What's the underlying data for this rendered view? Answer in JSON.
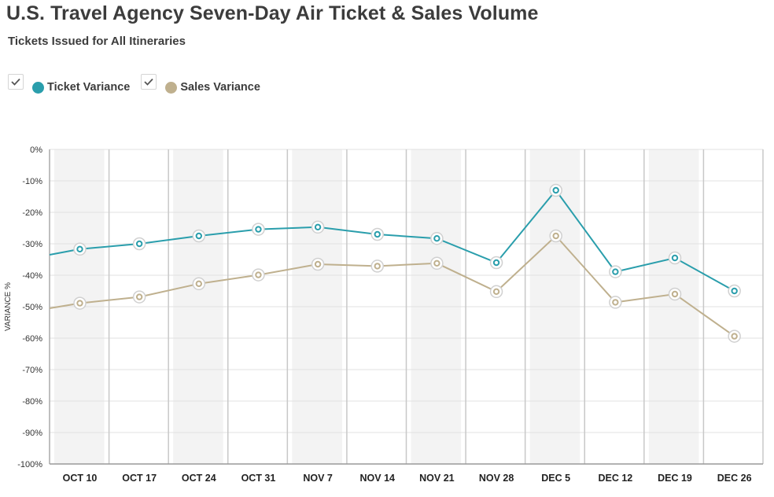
{
  "header": {
    "title": "U.S. Travel Agency Seven-Day Air Ticket & Sales Volume",
    "subtitle": "Tickets Issued for All Itineraries"
  },
  "legend": {
    "items": [
      {
        "label": "Ticket Variance",
        "color": "#2a9eac",
        "checked": true,
        "icon": "check-icon"
      },
      {
        "label": "Sales Variance",
        "color": "#bfb08e",
        "checked": true,
        "icon": "check-icon"
      }
    ]
  },
  "chart_data": {
    "type": "line",
    "ylabel": "VARIANCE %",
    "xlabel": "",
    "ylim": [
      -100,
      0
    ],
    "yticks": [
      0,
      -10,
      -20,
      -30,
      -40,
      -50,
      -60,
      -70,
      -80,
      -90,
      -100
    ],
    "ytick_labels": [
      "0%",
      "-10%",
      "-20%",
      "-30%",
      "-40%",
      "-50%",
      "-60%",
      "-70%",
      "-80%",
      "-90%",
      "-100%"
    ],
    "categories": [
      "OCT 10",
      "OCT 17",
      "OCT 24",
      "OCT 31",
      "NOV 7",
      "NOV 14",
      "NOV 21",
      "NOV 28",
      "DEC 5",
      "DEC 12",
      "DEC 19",
      "DEC 26"
    ],
    "lead_in": {
      "ticket": -33.5,
      "sales": -50.5
    },
    "series": [
      {
        "name": "Ticket Variance",
        "color": "#2a9eac",
        "values": [
          -31.7,
          -30.0,
          -27.5,
          -25.4,
          -24.7,
          -27.0,
          -28.3,
          -36.0,
          -13.0,
          -38.9,
          -34.5,
          -45.0
        ]
      },
      {
        "name": "Sales Variance",
        "color": "#bfb08e",
        "values": [
          -48.9,
          -46.9,
          -42.7,
          -39.9,
          -36.5,
          -37.1,
          -36.2,
          -45.2,
          -27.5,
          -48.6,
          -46.0,
          -59.4
        ]
      }
    ],
    "grid": true,
    "shaded_columns": [
      0,
      2,
      4,
      6,
      8,
      10
    ]
  }
}
